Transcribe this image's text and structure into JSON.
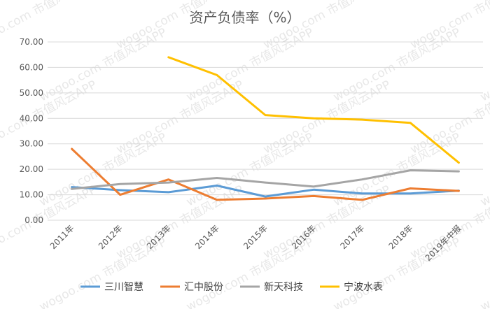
{
  "chart_data": {
    "type": "line",
    "title": "资产负债率（%）",
    "categories": [
      "2011年",
      "2012年",
      "2013年",
      "2014年",
      "2015年",
      "2016年",
      "2017年",
      "2018年",
      "2019年中报"
    ],
    "ylim": [
      0,
      70
    ],
    "yticks": [
      "0.00",
      "10.00",
      "20.00",
      "30.00",
      "40.00",
      "50.00",
      "60.00",
      "70.00"
    ],
    "grid": true,
    "legend_position": "bottom",
    "series": [
      {
        "name": "三川智慧",
        "color": "#5B9BD5",
        "values": [
          13.0,
          11.8,
          11.0,
          13.6,
          9.3,
          12.0,
          10.5,
          10.5,
          11.6
        ]
      },
      {
        "name": "汇中股份",
        "color": "#ED7D31",
        "values": [
          28.0,
          10.0,
          16.0,
          8.0,
          8.5,
          9.5,
          8.0,
          12.5,
          11.5
        ]
      },
      {
        "name": "新天科技",
        "color": "#A5A5A5",
        "values": [
          12.3,
          14.2,
          14.8,
          16.6,
          14.8,
          13.2,
          16.0,
          19.6,
          19.2
        ]
      },
      {
        "name": "宁波水表",
        "color": "#FFC000",
        "values": [
          null,
          null,
          64.0,
          57.0,
          41.3,
          40.0,
          39.5,
          38.2,
          22.6
        ]
      }
    ]
  },
  "watermark": "wogoo.com 市值风云APP"
}
